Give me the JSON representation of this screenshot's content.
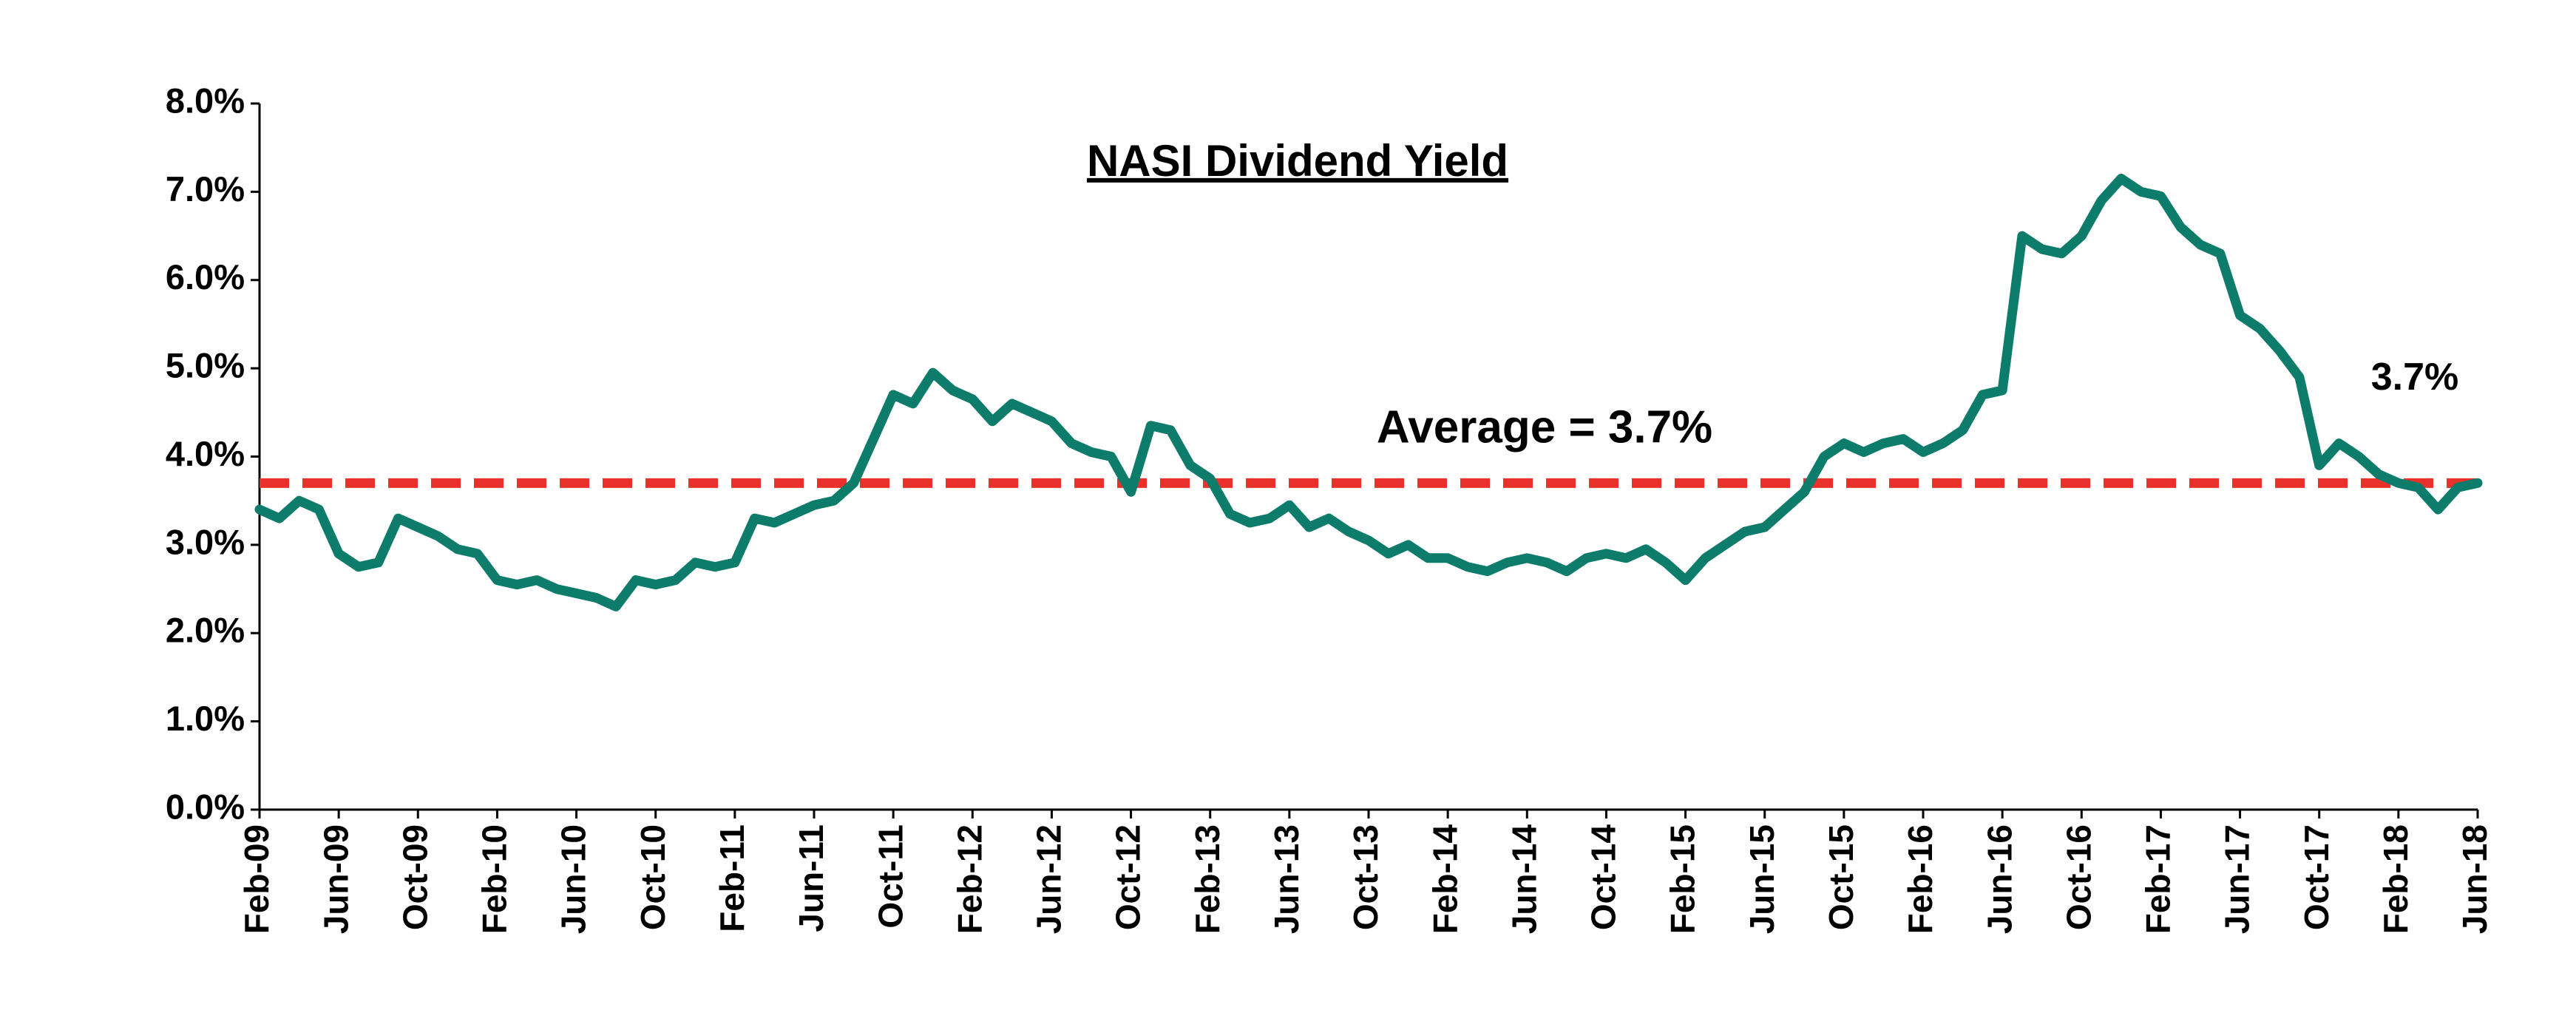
{
  "chart_data": {
    "type": "line",
    "title": "NASI Dividend Yield",
    "categories": [
      "Feb-09",
      null,
      null,
      null,
      "Jun-09",
      null,
      null,
      null,
      "Oct-09",
      null,
      null,
      null,
      "Feb-10",
      null,
      null,
      null,
      "Jun-10",
      null,
      null,
      null,
      "Oct-10",
      null,
      null,
      null,
      "Feb-11",
      null,
      null,
      null,
      "Jun-11",
      null,
      null,
      null,
      "Oct-11",
      null,
      null,
      null,
      "Feb-12",
      null,
      null,
      null,
      "Jun-12",
      null,
      null,
      null,
      "Oct-12",
      null,
      null,
      null,
      "Feb-13",
      null,
      null,
      null,
      "Jun-13",
      null,
      null,
      null,
      "Oct-13",
      null,
      null,
      null,
      "Feb-14",
      null,
      null,
      null,
      "Jun-14",
      null,
      null,
      null,
      "Oct-14",
      null,
      null,
      null,
      "Feb-15",
      null,
      null,
      null,
      "Jun-15",
      null,
      null,
      null,
      "Oct-15",
      null,
      null,
      null,
      "Feb-16",
      null,
      null,
      null,
      "Jun-16",
      null,
      null,
      null,
      "Oct-16",
      null,
      null,
      null,
      "Feb-17",
      null,
      null,
      null,
      "Jun-17",
      null,
      null,
      null,
      "Oct-17",
      null,
      null,
      null,
      "Feb-18",
      null,
      null,
      null,
      "Jun-18"
    ],
    "series": [
      {
        "name": "NASI Dividend Yield",
        "color": "#0e7c6b",
        "values": [
          3.4,
          3.3,
          3.5,
          3.4,
          2.9,
          2.75,
          2.8,
          3.3,
          3.2,
          3.1,
          2.95,
          2.9,
          2.6,
          2.55,
          2.6,
          2.5,
          2.45,
          2.4,
          2.3,
          2.6,
          2.55,
          2.6,
          2.8,
          2.75,
          2.8,
          3.3,
          3.25,
          3.35,
          3.45,
          3.5,
          3.7,
          4.2,
          4.7,
          4.6,
          4.95,
          4.75,
          4.65,
          4.4,
          4.6,
          4.5,
          4.4,
          4.15,
          4.05,
          4.0,
          3.6,
          4.35,
          4.3,
          3.9,
          3.75,
          3.35,
          3.25,
          3.3,
          3.45,
          3.2,
          3.3,
          3.15,
          3.05,
          2.9,
          3.0,
          2.85,
          2.85,
          2.75,
          2.7,
          2.8,
          2.85,
          2.8,
          2.7,
          2.85,
          2.9,
          2.85,
          2.95,
          2.8,
          2.6,
          2.85,
          3.0,
          3.15,
          3.2,
          3.4,
          3.6,
          4.0,
          4.15,
          4.05,
          4.15,
          4.2,
          4.05,
          4.15,
          4.3,
          4.7,
          4.75,
          6.5,
          6.35,
          6.3,
          6.5,
          6.9,
          7.15,
          7.0,
          6.95,
          6.6,
          6.4,
          6.3,
          5.6,
          5.45,
          5.2,
          4.9,
          3.9,
          4.15,
          4.0,
          3.8,
          3.7,
          3.65,
          3.4,
          3.65,
          3.7
        ]
      }
    ],
    "end_label": "3.7%",
    "average": 3.7,
    "average_label": "Average = 3.7%",
    "average_color": "#e8312a",
    "ylim": [
      0,
      8
    ],
    "yticks": [
      {
        "value": 0,
        "label": "0.0%"
      },
      {
        "value": 1,
        "label": "1.0%"
      },
      {
        "value": 2,
        "label": "2.0%"
      },
      {
        "value": 3,
        "label": "3.0%"
      },
      {
        "value": 4,
        "label": "4.0%"
      },
      {
        "value": 5,
        "label": "5.0%"
      },
      {
        "value": 6,
        "label": "6.0%"
      },
      {
        "value": 7,
        "label": "7.0%"
      },
      {
        "value": 8,
        "label": "8.0%"
      }
    ],
    "grid": false
  }
}
